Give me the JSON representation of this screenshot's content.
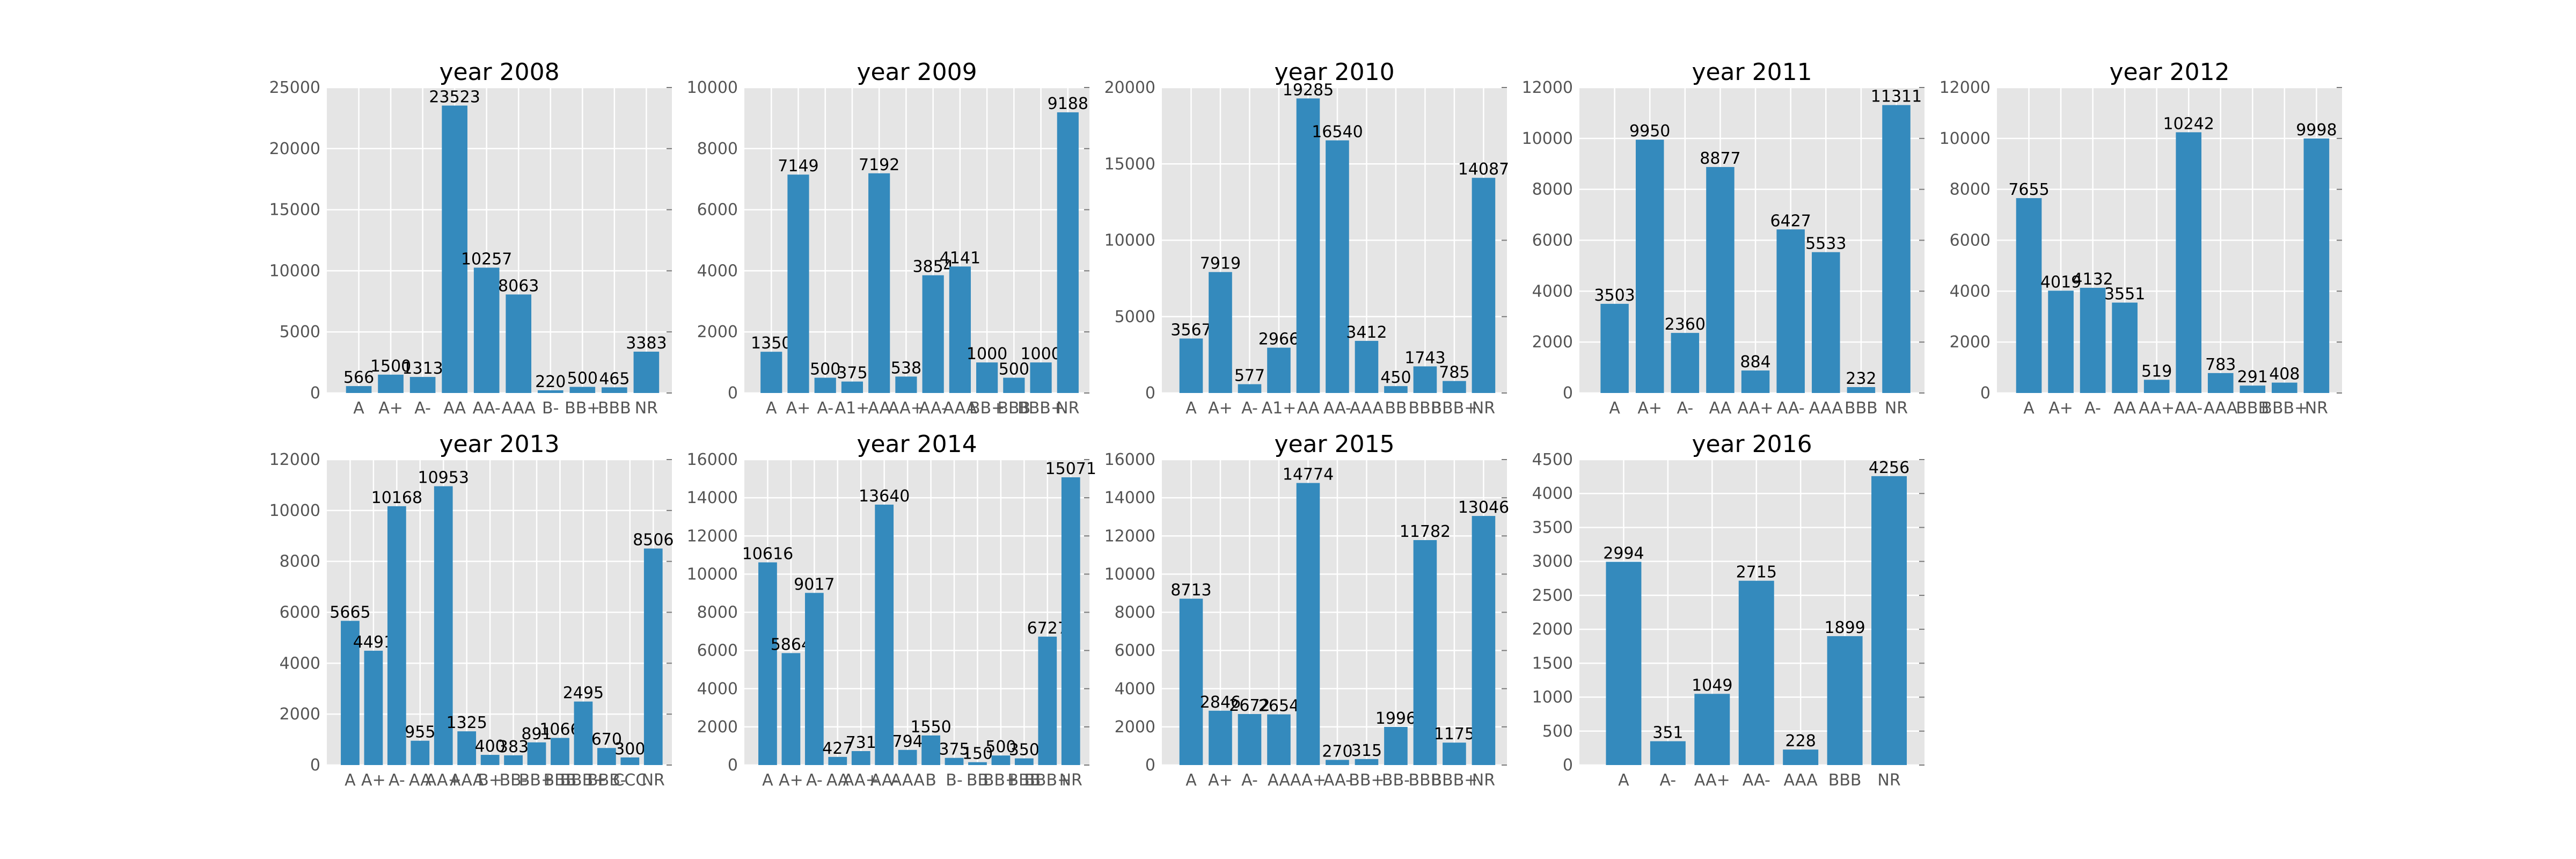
{
  "chart_data": [
    {
      "type": "bar",
      "title": "year 2008",
      "categories": [
        "A",
        "A+",
        "A-",
        "AA",
        "AA-",
        "AAA",
        "B-",
        "BB+",
        "BBB",
        "NR"
      ],
      "values": [
        566,
        1500,
        1313,
        23523,
        10257,
        8063,
        220,
        500,
        465,
        3383
      ],
      "color": "#348ABD",
      "ylim": [
        0,
        25000
      ],
      "yticks": [
        0,
        5000,
        10000,
        15000,
        20000,
        25000
      ],
      "grid": true
    },
    {
      "type": "bar",
      "title": "year 2009",
      "categories": [
        "A",
        "A+",
        "A-",
        "A1+",
        "AA",
        "AA+",
        "AA-",
        "AAA",
        "BB+",
        "BBB",
        "BBB+",
        "NR"
      ],
      "values": [
        1350,
        7149,
        500,
        375,
        7192,
        538,
        3854,
        4141,
        1000,
        500,
        1000,
        9188
      ],
      "color": "#348ABD",
      "ylim": [
        0,
        10000
      ],
      "yticks": [
        0,
        2000,
        4000,
        6000,
        8000,
        10000
      ],
      "grid": true
    },
    {
      "type": "bar",
      "title": "year 2010",
      "categories": [
        "A",
        "A+",
        "A-",
        "A1+",
        "AA",
        "AA-",
        "AAA",
        "BB",
        "BBB",
        "BBB+",
        "NR"
      ],
      "values": [
        3567,
        7919,
        577,
        2966,
        19285,
        16540,
        3412,
        450,
        1743,
        785,
        14087
      ],
      "color": "#348ABD",
      "ylim": [
        0,
        20000
      ],
      "yticks": [
        0,
        5000,
        10000,
        15000,
        20000
      ],
      "grid": true
    },
    {
      "type": "bar",
      "title": "year 2011",
      "categories": [
        "A",
        "A+",
        "A-",
        "AA",
        "AA+",
        "AA-",
        "AAA",
        "BBB",
        "NR"
      ],
      "values": [
        3503,
        9950,
        2360,
        8877,
        884,
        6427,
        5533,
        232,
        11311
      ],
      "color": "#348ABD",
      "ylim": [
        0,
        12000
      ],
      "yticks": [
        0,
        2000,
        4000,
        6000,
        8000,
        10000,
        12000
      ],
      "grid": true
    },
    {
      "type": "bar",
      "title": "year 2012",
      "categories": [
        "A",
        "A+",
        "A-",
        "AA",
        "AA+",
        "AA-",
        "AAA",
        "BBB",
        "BBB+",
        "NR"
      ],
      "values": [
        7655,
        4019,
        4132,
        3551,
        519,
        10242,
        783,
        291,
        408,
        9998
      ],
      "color": "#348ABD",
      "ylim": [
        0,
        12000
      ],
      "yticks": [
        0,
        2000,
        4000,
        6000,
        8000,
        10000,
        12000
      ],
      "grid": true
    },
    {
      "type": "bar",
      "title": "year 2013",
      "categories": [
        "A",
        "A+",
        "A-",
        "AA",
        "AA+",
        "AAA",
        "B+",
        "BB-",
        "BB+",
        "BBB",
        "BBB+",
        "BBB-",
        "CCC",
        "NR"
      ],
      "values": [
        5665,
        4491,
        10168,
        955,
        10953,
        1325,
        400,
        383,
        891,
        1066,
        2495,
        670,
        300,
        8506
      ],
      "color": "#348ABD",
      "ylim": [
        0,
        12000
      ],
      "yticks": [
        0,
        2000,
        4000,
        6000,
        8000,
        10000,
        12000
      ],
      "grid": true
    },
    {
      "type": "bar",
      "title": "year 2014",
      "categories": [
        "A",
        "A+",
        "A-",
        "AA",
        "AA+",
        "AA-",
        "AAA",
        "B",
        "B-",
        "BB",
        "BB+",
        "BBB",
        "BBB+",
        "NR"
      ],
      "values": [
        10616,
        5864,
        9017,
        427,
        731,
        13640,
        794,
        1550,
        375,
        150,
        500,
        350,
        6727,
        15071
      ],
      "color": "#348ABD",
      "ylim": [
        0,
        16000
      ],
      "yticks": [
        0,
        2000,
        4000,
        6000,
        8000,
        10000,
        12000,
        14000,
        16000
      ],
      "grid": true
    },
    {
      "type": "bar",
      "title": "year 2015",
      "categories": [
        "A",
        "A+",
        "A-",
        "AA",
        "AA+",
        "AA-",
        "BB+",
        "BB-",
        "BBB",
        "BBB+",
        "NR"
      ],
      "values": [
        8713,
        2846,
        2672,
        2654,
        14774,
        270,
        315,
        1996,
        11782,
        1175,
        13046
      ],
      "color": "#348ABD",
      "ylim": [
        0,
        16000
      ],
      "yticks": [
        0,
        2000,
        4000,
        6000,
        8000,
        10000,
        12000,
        14000,
        16000
      ],
      "grid": true
    },
    {
      "type": "bar",
      "title": "year 2016",
      "categories": [
        "A",
        "A-",
        "AA+",
        "AA-",
        "AAA",
        "BBB",
        "NR"
      ],
      "values": [
        2994,
        351,
        1049,
        2715,
        228,
        1899,
        4256
      ],
      "color": "#348ABD",
      "ylim": [
        0,
        4500
      ],
      "yticks": [
        0,
        500,
        1000,
        1500,
        2000,
        2500,
        3000,
        3500,
        4000,
        4500
      ],
      "grid": true
    }
  ]
}
